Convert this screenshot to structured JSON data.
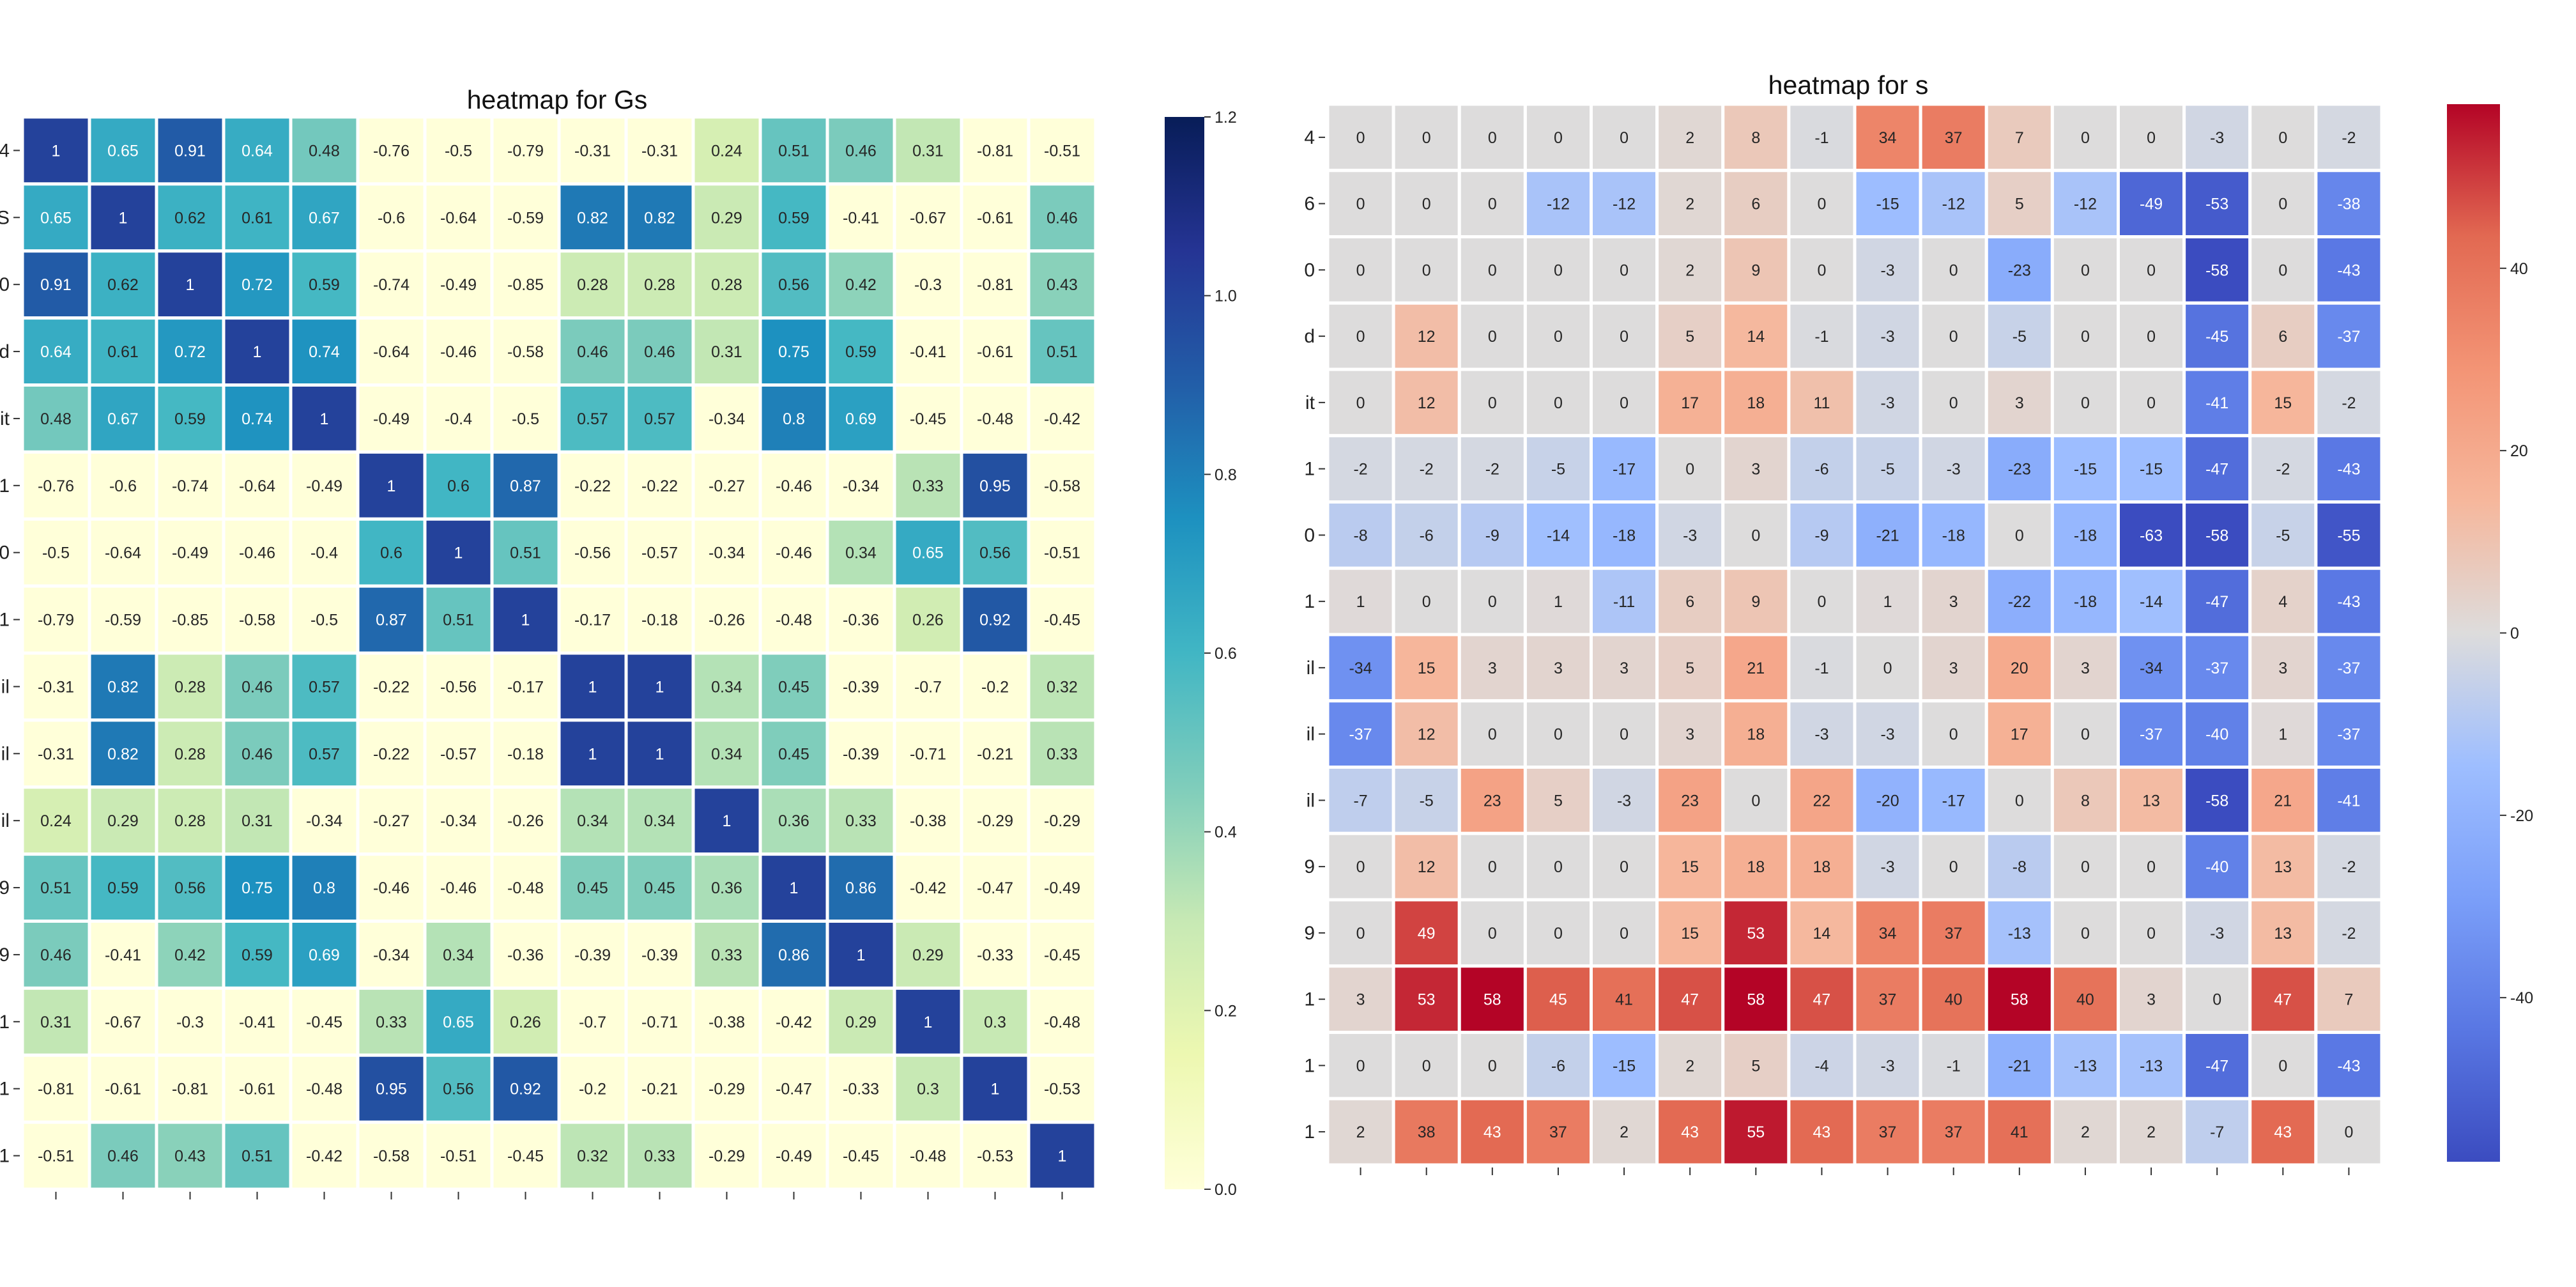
{
  "chart_data": [
    {
      "type": "heatmap",
      "title": "heatmap for Gs",
      "row_labels": [
        "4",
        "S",
        "0",
        "d",
        "it",
        "1",
        "0",
        "1",
        "il",
        "il",
        "il",
        "9",
        "9",
        "1",
        "1",
        "1"
      ],
      "colorscale": "YlGnBu",
      "colorbar": {
        "range": [
          0.0,
          1.2
        ],
        "ticks": [
          "0.0",
          "0.2",
          "0.4",
          "0.6",
          "0.8",
          "1.0",
          "1.2"
        ]
      },
      "values": [
        [
          1,
          0.65,
          0.91,
          0.64,
          0.48,
          -0.76,
          -0.5,
          -0.79,
          -0.31,
          -0.31,
          0.24,
          0.51,
          0.46,
          0.31,
          -0.81,
          -0.51
        ],
        [
          0.65,
          1,
          0.62,
          0.61,
          0.67,
          -0.6,
          -0.64,
          -0.59,
          0.82,
          0.82,
          0.29,
          0.59,
          -0.41,
          -0.67,
          -0.61,
          0.46
        ],
        [
          0.91,
          0.62,
          1,
          0.72,
          0.59,
          -0.74,
          -0.49,
          -0.85,
          0.28,
          0.28,
          0.28,
          0.56,
          0.42,
          -0.3,
          -0.81,
          0.43
        ],
        [
          0.64,
          0.61,
          0.72,
          1,
          0.74,
          -0.64,
          -0.46,
          -0.58,
          0.46,
          0.46,
          0.31,
          0.75,
          0.59,
          -0.41,
          -0.61,
          0.51
        ],
        [
          0.48,
          0.67,
          0.59,
          0.74,
          1,
          -0.49,
          -0.4,
          -0.5,
          0.57,
          0.57,
          -0.34,
          0.8,
          0.69,
          -0.45,
          -0.48,
          -0.42
        ],
        [
          -0.76,
          -0.6,
          -0.74,
          -0.64,
          -0.49,
          1,
          0.6,
          0.87,
          -0.22,
          -0.22,
          -0.27,
          -0.46,
          -0.34,
          0.33,
          0.95,
          -0.58
        ],
        [
          -0.5,
          -0.64,
          -0.49,
          -0.46,
          -0.4,
          0.6,
          1,
          0.51,
          -0.56,
          -0.57,
          -0.34,
          -0.46,
          0.34,
          0.65,
          0.56,
          -0.51
        ],
        [
          -0.79,
          -0.59,
          -0.85,
          -0.58,
          -0.5,
          0.87,
          0.51,
          1,
          -0.17,
          -0.18,
          -0.26,
          -0.48,
          -0.36,
          0.26,
          0.92,
          -0.45
        ],
        [
          -0.31,
          0.82,
          0.28,
          0.46,
          0.57,
          -0.22,
          -0.56,
          -0.17,
          1,
          1,
          0.34,
          0.45,
          -0.39,
          -0.7,
          -0.2,
          0.32
        ],
        [
          -0.31,
          0.82,
          0.28,
          0.46,
          0.57,
          -0.22,
          -0.57,
          -0.18,
          1,
          1,
          0.34,
          0.45,
          -0.39,
          -0.71,
          -0.21,
          0.33
        ],
        [
          0.24,
          0.29,
          0.28,
          0.31,
          -0.34,
          -0.27,
          -0.34,
          -0.26,
          0.34,
          0.34,
          1,
          0.36,
          0.33,
          -0.38,
          -0.29,
          -0.29
        ],
        [
          0.51,
          0.59,
          0.56,
          0.75,
          0.8,
          -0.46,
          -0.46,
          -0.48,
          0.45,
          0.45,
          0.36,
          1,
          0.86,
          -0.42,
          -0.47,
          -0.49
        ],
        [
          0.46,
          -0.41,
          0.42,
          0.59,
          0.69,
          -0.34,
          0.34,
          -0.36,
          -0.39,
          -0.39,
          0.33,
          0.86,
          1,
          0.29,
          -0.33,
          -0.45
        ],
        [
          0.31,
          -0.67,
          -0.3,
          -0.41,
          -0.45,
          0.33,
          0.65,
          0.26,
          -0.7,
          -0.71,
          -0.38,
          -0.42,
          0.29,
          1,
          0.3,
          -0.48
        ],
        [
          -0.81,
          -0.61,
          -0.81,
          -0.61,
          -0.48,
          0.95,
          0.56,
          0.92,
          -0.2,
          -0.21,
          -0.29,
          -0.47,
          -0.33,
          0.3,
          1,
          -0.53
        ],
        [
          -0.51,
          0.46,
          0.43,
          0.51,
          -0.42,
          -0.58,
          -0.51,
          -0.45,
          0.32,
          0.33,
          -0.29,
          -0.49,
          -0.45,
          -0.48,
          -0.53,
          1
        ]
      ]
    },
    {
      "type": "heatmap",
      "title": "heatmap for s",
      "row_labels": [
        "4",
        "6",
        "0",
        "d",
        "it",
        "1",
        "0",
        "1",
        "il",
        "il",
        "il",
        "9",
        "9",
        "1",
        "1",
        "1"
      ],
      "colorscale": "coolwarm",
      "colorbar": {
        "range": [
          -58,
          58
        ],
        "ticks": [
          "40",
          "20",
          "0",
          "-20",
          "-40"
        ],
        "tick_values": [
          40,
          20,
          0,
          -20,
          -40
        ]
      },
      "values": [
        [
          0,
          0,
          0,
          0,
          0,
          2,
          8,
          -1,
          34,
          37,
          7,
          0,
          0,
          -3,
          0,
          -2
        ],
        [
          0,
          0,
          0,
          -12,
          -12,
          2,
          6,
          0,
          -15,
          -12,
          5,
          -12,
          -49,
          -53,
          0,
          -38
        ],
        [
          0,
          0,
          0,
          0,
          0,
          2,
          9,
          0,
          -3,
          0,
          -23,
          0,
          0,
          -58,
          0,
          -43
        ],
        [
          0,
          12,
          0,
          0,
          0,
          5,
          14,
          -1,
          -3,
          0,
          -5,
          0,
          0,
          -45,
          6,
          -37
        ],
        [
          0,
          12,
          0,
          0,
          0,
          17,
          18,
          11,
          -3,
          0,
          3,
          0,
          0,
          -41,
          15,
          -2
        ],
        [
          -2,
          -2,
          -2,
          -5,
          -17,
          0,
          3,
          -6,
          -5,
          -3,
          -23,
          -15,
          -15,
          -47,
          -2,
          -43
        ],
        [
          -8,
          -6,
          -9,
          -14,
          -18,
          -3,
          0,
          -9,
          -21,
          -18,
          0,
          -18,
          -63,
          -58,
          -5,
          -55
        ],
        [
          1,
          0,
          0,
          1,
          -11,
          6,
          9,
          0,
          1,
          3,
          -22,
          -18,
          -14,
          -47,
          4,
          -43
        ],
        [
          -34,
          15,
          3,
          3,
          3,
          5,
          21,
          -1,
          0,
          3,
          20,
          3,
          -34,
          -37,
          3,
          -37
        ],
        [
          -37,
          12,
          0,
          0,
          0,
          3,
          18,
          -3,
          -3,
          0,
          17,
          0,
          -37,
          -40,
          1,
          -37
        ],
        [
          -7,
          -5,
          23,
          5,
          -3,
          23,
          0,
          22,
          -20,
          -17,
          0,
          8,
          13,
          -58,
          21,
          -41
        ],
        [
          0,
          12,
          0,
          0,
          0,
          15,
          18,
          18,
          -3,
          0,
          -8,
          0,
          0,
          -40,
          13,
          -2
        ],
        [
          0,
          49,
          0,
          0,
          0,
          15,
          53,
          14,
          34,
          37,
          -13,
          0,
          0,
          -3,
          13,
          -2
        ],
        [
          3,
          53,
          58,
          45,
          41,
          47,
          58,
          47,
          37,
          40,
          58,
          40,
          3,
          0,
          47,
          7
        ],
        [
          0,
          0,
          0,
          -6,
          -15,
          2,
          5,
          -4,
          -3,
          -1,
          -21,
          -13,
          -13,
          -47,
          0,
          -43
        ],
        [
          2,
          38,
          43,
          37,
          2,
          43,
          55,
          43,
          37,
          37,
          41,
          2,
          2,
          -7,
          43,
          0
        ]
      ]
    }
  ]
}
